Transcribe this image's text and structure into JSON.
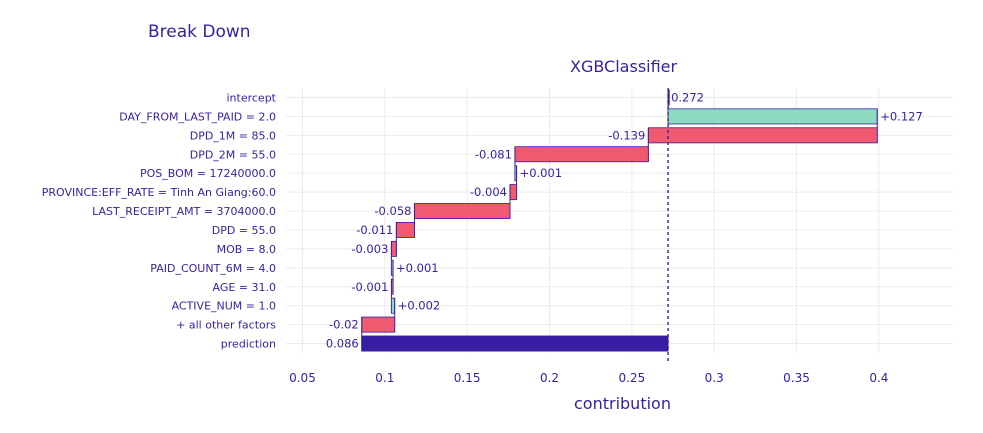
{
  "chart_data": {
    "type": "bar",
    "title": "Break Down",
    "subtitle": "XGBClassifier",
    "xlabel": "contribution",
    "xlim": [
      0.04,
      0.445
    ],
    "xticks": [
      0.05,
      0.1,
      0.15,
      0.2,
      0.25,
      0.3,
      0.35,
      0.4
    ],
    "grid": true,
    "reference_line": 0.272,
    "colors": {
      "positive": "#8bdcbe",
      "negative": "#f05a71",
      "prediction": "#371ea3",
      "text": "#371ea3",
      "grid": "#ebebeb"
    },
    "bars": [
      {
        "label": "intercept",
        "value": 0.272,
        "display": "0.272",
        "kind": "intercept"
      },
      {
        "label": "DAY_FROM_LAST_PAID = 2.0",
        "value": 0.127,
        "display": "+0.127",
        "kind": "positive"
      },
      {
        "label": "DPD_1M = 85.0",
        "value": -0.139,
        "display": "-0.139",
        "kind": "negative"
      },
      {
        "label": "DPD_2M = 55.0",
        "value": -0.081,
        "display": "-0.081",
        "kind": "negative"
      },
      {
        "label": "POS_BOM = 17240000.0",
        "value": 0.001,
        "display": "+0.001",
        "kind": "positive"
      },
      {
        "label": "PROVINCE:EFF_RATE = Tinh An Giang:60.0",
        "value": -0.004,
        "display": "-0.004",
        "kind": "negative"
      },
      {
        "label": "LAST_RECEIPT_AMT = 3704000.0",
        "value": -0.058,
        "display": "-0.058",
        "kind": "negative"
      },
      {
        "label": "DPD = 55.0",
        "value": -0.011,
        "display": "-0.011",
        "kind": "negative"
      },
      {
        "label": "MOB = 8.0",
        "value": -0.003,
        "display": "-0.003",
        "kind": "negative"
      },
      {
        "label": "PAID_COUNT_6M = 4.0",
        "value": 0.001,
        "display": "+0.001",
        "kind": "positive"
      },
      {
        "label": "AGE = 31.0",
        "value": -0.001,
        "display": "-0.001",
        "kind": "negative"
      },
      {
        "label": "ACTIVE_NUM = 1.0",
        "value": 0.002,
        "display": "+0.002",
        "kind": "positive"
      },
      {
        "label": "+ all other factors",
        "value": -0.02,
        "display": "-0.02",
        "kind": "negative"
      },
      {
        "label": "prediction",
        "value": 0.086,
        "display": "0.086",
        "kind": "prediction"
      }
    ]
  }
}
